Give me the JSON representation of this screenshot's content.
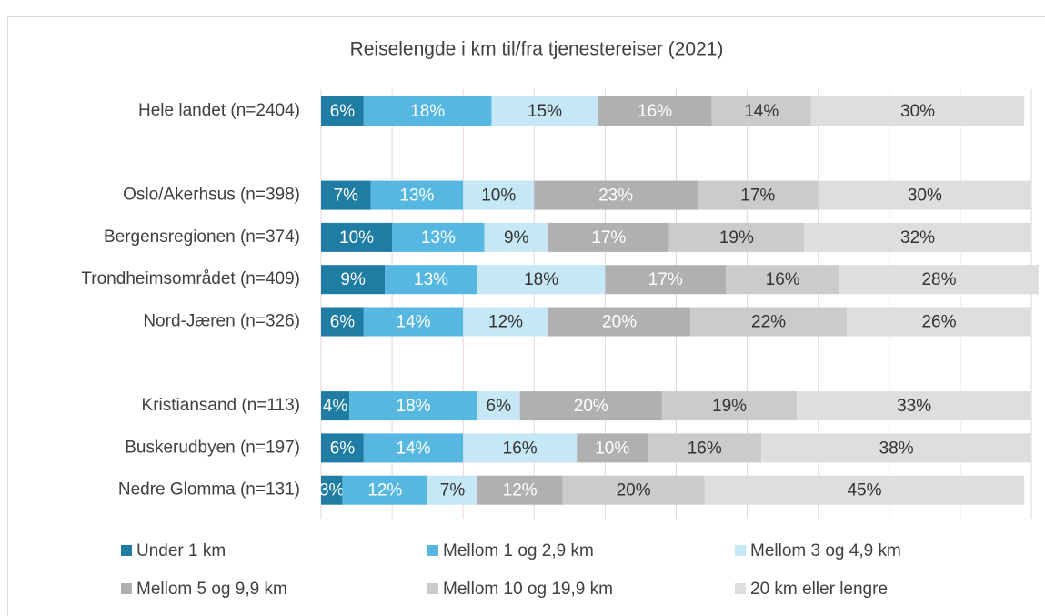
{
  "chart_data": {
    "type": "stacked_barh",
    "title": "Reiselengde i km til/fra tjenestereiser (2021)",
    "categories": [
      "Hele landet (n=2404)",
      null,
      "Oslo/Akerhsus (n=398)",
      "Bergensregionen (n=374)",
      "Trondheimsområdet (n=409)",
      "Nord-Jæren (n=326)",
      null,
      "Kristiansand (n=113)",
      "Buskerudbyen (n=197)",
      "Nedre Glomma (n=131)"
    ],
    "series": [
      {
        "name": "Under 1 km",
        "color": "#1f7ca3",
        "label_color": "#ffffff",
        "values": [
          6,
          null,
          7,
          10,
          9,
          6,
          null,
          4,
          6,
          3
        ],
        "value_labels": [
          "6%",
          null,
          "7%",
          "10%",
          "9%",
          "6%",
          null,
          "4%",
          "6%",
          "3%"
        ]
      },
      {
        "name": "Mellom 1 og 2,9 km",
        "color": "#56b8e0",
        "label_color": "#ffffff",
        "values": [
          18,
          null,
          13,
          13,
          13,
          14,
          null,
          18,
          14,
          12
        ],
        "value_labels": [
          "18%",
          null,
          "13%",
          "13%",
          "13%",
          "14%",
          null,
          "18%",
          "14%",
          "12%"
        ]
      },
      {
        "name": "Mellom 3 og 4,9 km",
        "color": "#c6e7f5",
        "label_color": "#333333",
        "values": [
          15,
          null,
          10,
          9,
          18,
          12,
          null,
          6,
          16,
          7
        ],
        "value_labels": [
          "15%",
          null,
          "10%",
          "9%",
          "18%",
          "12%",
          null,
          "6%",
          "16%",
          "7%"
        ]
      },
      {
        "name": "Mellom 5 og 9,9 km",
        "color": "#b0b0b0",
        "label_color": "#ffffff",
        "values": [
          16,
          null,
          23,
          17,
          17,
          20,
          null,
          20,
          10,
          12
        ],
        "value_labels": [
          "16%",
          null,
          "23%",
          "17%",
          "17%",
          "20%",
          null,
          "20%",
          "10%",
          "12%"
        ]
      },
      {
        "name": "Mellom 10 og 19,9 km",
        "color": "#cbcbcb",
        "label_color": "#333333",
        "values": [
          14,
          null,
          17,
          19,
          16,
          22,
          null,
          19,
          16,
          20
        ],
        "value_labels": [
          "14%",
          null,
          "17%",
          "19%",
          "16%",
          "22%",
          null,
          "19%",
          "16%",
          "20%"
        ]
      },
      {
        "name": "20 km eller lengre",
        "color": "#dedede",
        "label_color": "#333333",
        "values": [
          30,
          null,
          30,
          32,
          28,
          26,
          null,
          33,
          38,
          45
        ],
        "value_labels": [
          "30%",
          null,
          "30%",
          "32%",
          "28%",
          "26%",
          null,
          "33%",
          "38%",
          "45%"
        ]
      }
    ],
    "xlim": [
      0,
      100
    ],
    "xticks": [
      0,
      10,
      20,
      30,
      40,
      50,
      60,
      70,
      80,
      90,
      100
    ],
    "grid": true
  }
}
